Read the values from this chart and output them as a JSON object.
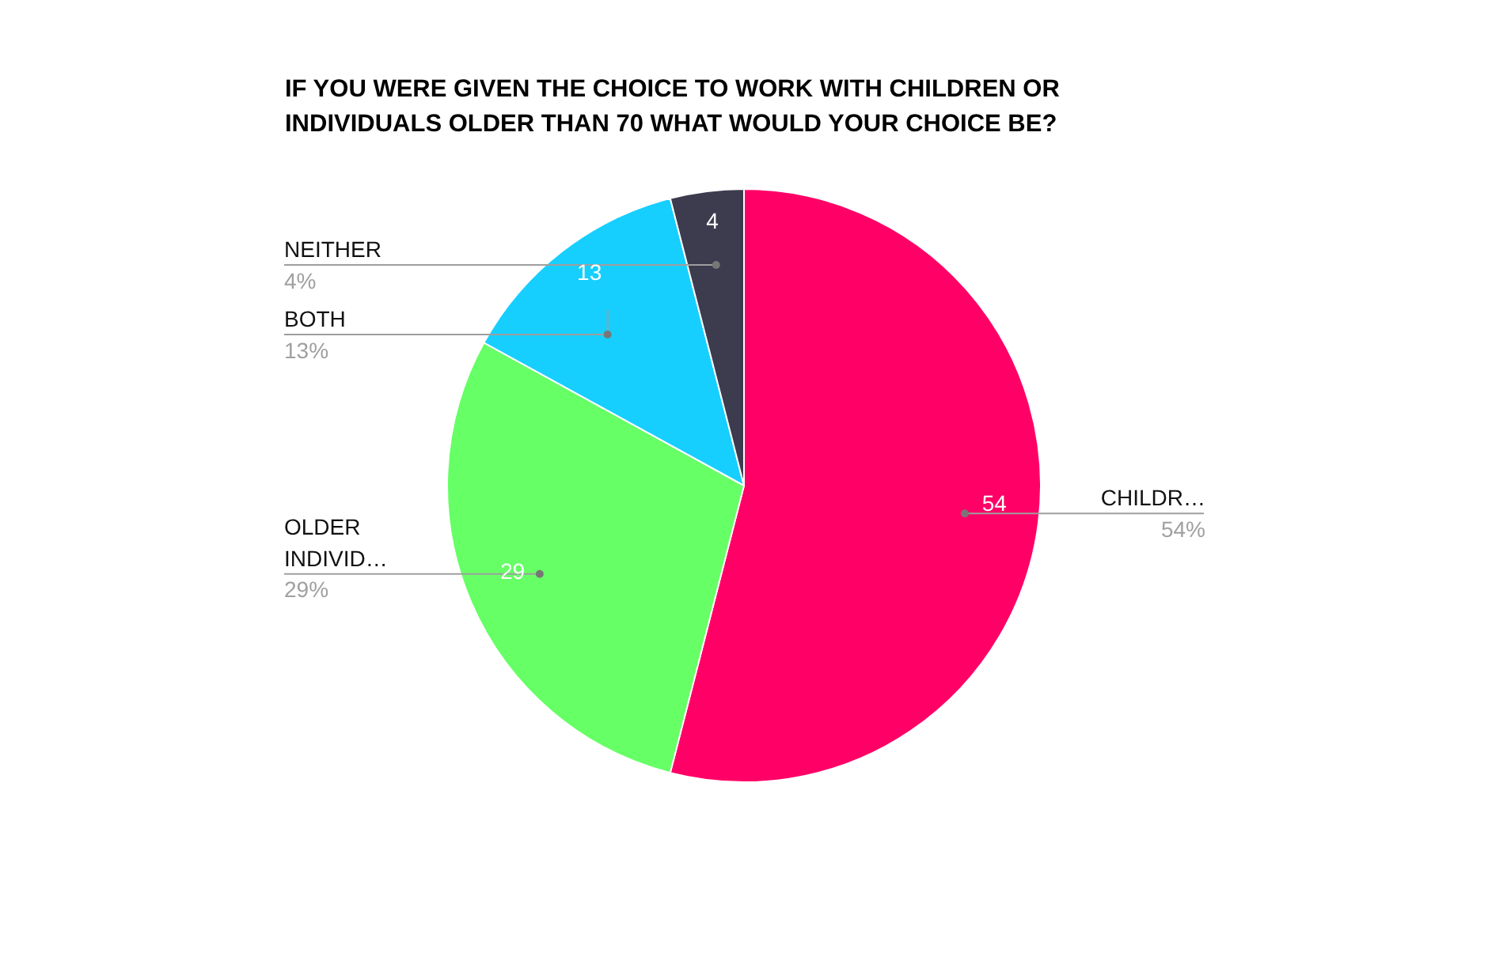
{
  "chart_data": {
    "type": "pie",
    "title": "IF YOU WERE GIVEN THE CHOICE TO WORK WITH CHILDREN OR INDIVIDUALS OLDER THAN 70 WHAT WOULD YOUR CHOICE BE?",
    "categories": [
      "CHILDR…",
      "OLDER INDIVID…",
      "BOTH",
      "NEITHER"
    ],
    "values": [
      54,
      29,
      13,
      4
    ],
    "colors": [
      "#ff0066",
      "#66ff66",
      "#16cfff",
      "#3d3b4e"
    ],
    "data_labels": true,
    "annotations": [
      "54%",
      "29%",
      "13%",
      "4%"
    ],
    "legend": false
  }
}
